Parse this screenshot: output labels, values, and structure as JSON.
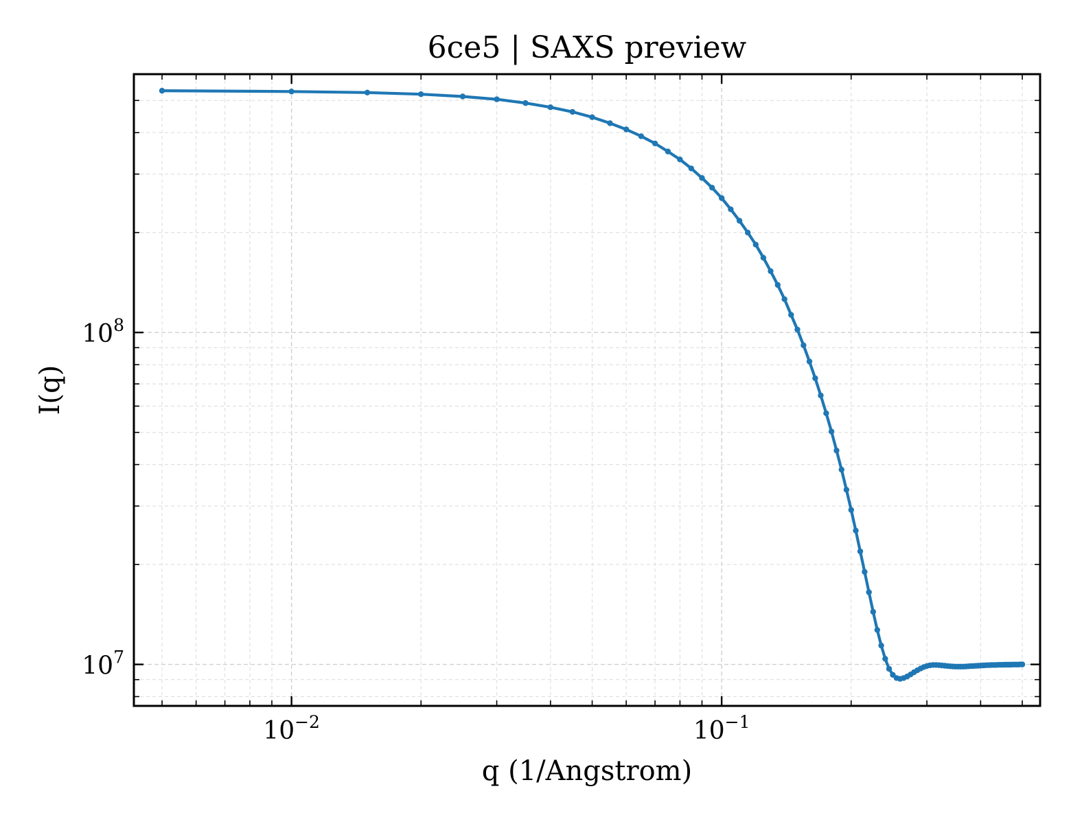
{
  "chart_data": {
    "type": "line",
    "title": "6ce5 | SAXS preview",
    "xlabel": "q (1/Angstrom)",
    "ylabel": "I(q)",
    "xscale": "log",
    "yscale": "log",
    "xlim": [
      0.0043,
      0.55
    ],
    "ylim": [
      7500000,
      600000000
    ],
    "grid": true,
    "legend": "none",
    "x_ticks": [
      {
        "value": 0.01,
        "base": "10",
        "exp": "−2"
      },
      {
        "value": 0.1,
        "base": "10",
        "exp": "−1"
      }
    ],
    "y_ticks": [
      {
        "value": 10000000,
        "base": "10",
        "exp": "7"
      },
      {
        "value": 100000000,
        "base": "10",
        "exp": "8"
      }
    ],
    "colors": {
      "series": "#1f77b4"
    },
    "series": [
      {
        "marker": "circle",
        "x": [
          0.005,
          0.01,
          0.015,
          0.02,
          0.025,
          0.03,
          0.035,
          0.04,
          0.045,
          0.05,
          0.055,
          0.06,
          0.065,
          0.07,
          0.075,
          0.08,
          0.085,
          0.09,
          0.095,
          0.1,
          0.105,
          0.11,
          0.115,
          0.12,
          0.125,
          0.13,
          0.135,
          0.14,
          0.145,
          0.15,
          0.155,
          0.16,
          0.165,
          0.17,
          0.175,
          0.18,
          0.185,
          0.19,
          0.195,
          0.2,
          0.205,
          0.21,
          0.215,
          0.22,
          0.225,
          0.23,
          0.235,
          0.24,
          0.245,
          0.25,
          0.255,
          0.26,
          0.265,
          0.27,
          0.275,
          0.28,
          0.285,
          0.29,
          0.295,
          0.3,
          0.305,
          0.31,
          0.315,
          0.32,
          0.325,
          0.33,
          0.335,
          0.34,
          0.345,
          0.35,
          0.355,
          0.36,
          0.365,
          0.37,
          0.375,
          0.38,
          0.385,
          0.39,
          0.395,
          0.4,
          0.405,
          0.41,
          0.415,
          0.42,
          0.425,
          0.43,
          0.435,
          0.44,
          0.445,
          0.45,
          0.455,
          0.46,
          0.465,
          0.47,
          0.475,
          0.48,
          0.485,
          0.49,
          0.495,
          0.5
        ],
        "y": [
          535000000,
          532000000,
          528000000,
          522000000,
          514000000,
          504000000,
          491000000,
          477000000,
          462000000,
          445000000,
          427000000,
          409000000,
          390000000,
          371000000,
          351000000,
          332000000,
          312000000,
          292000000,
          273000000,
          254000000,
          235000000,
          217000000,
          200000000,
          184000000,
          168000000,
          153000000,
          139000000,
          126000000,
          113000000,
          102000000,
          91500000,
          81800000,
          72800000,
          64600000,
          57100000,
          50300000,
          44100000,
          38600000,
          33600000,
          29200000,
          25300000,
          21900000,
          19000000,
          16500000,
          14400000,
          12700000,
          11400000,
          10400000,
          9700000,
          9300000,
          9100000,
          9050000,
          9100000,
          9200000,
          9330000,
          9470000,
          9600000,
          9720000,
          9820000,
          9890000,
          9940000,
          9960000,
          9960000,
          9950000,
          9930000,
          9910000,
          9890000,
          9870000,
          9860000,
          9850000,
          9850000,
          9850000,
          9850000,
          9860000,
          9870000,
          9880000,
          9890000,
          9900000,
          9910000,
          9920000,
          9930000,
          9940000,
          9950000,
          9950000,
          9960000,
          9960000,
          9960000,
          9970000,
          9970000,
          9970000,
          9980000,
          9980000,
          9980000,
          9980000,
          9990000,
          9990000,
          9990000,
          9990000,
          10000000,
          10000000
        ]
      }
    ]
  }
}
